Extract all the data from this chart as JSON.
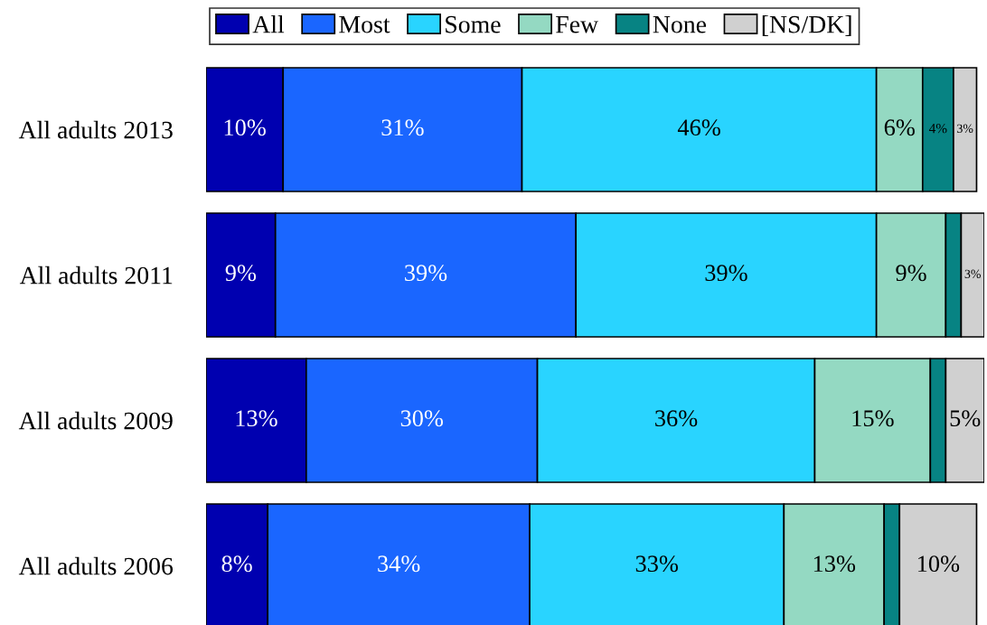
{
  "chart_data": {
    "type": "bar",
    "orientation": "horizontal",
    "stacked": true,
    "legend": "top",
    "categories": [
      "All adults 2013",
      "All adults 2011",
      "All adults 2009",
      "All adults 2006"
    ],
    "series": [
      {
        "name": "All",
        "color": "#0000b0",
        "values": [
          10,
          9,
          13,
          8
        ],
        "value_labels": [
          "10%",
          "9%",
          "13%",
          "8%"
        ]
      },
      {
        "name": "Most",
        "color": "#1a66ff",
        "values": [
          31,
          39,
          30,
          34
        ],
        "value_labels": [
          "31%",
          "39%",
          "30%",
          "34%"
        ]
      },
      {
        "name": "Some",
        "color": "#29d4ff",
        "values": [
          46,
          39,
          36,
          33
        ],
        "value_labels": [
          "46%",
          "39%",
          "36%",
          "33%"
        ]
      },
      {
        "name": "Few",
        "color": "#94d9c2",
        "values": [
          6,
          9,
          15,
          13
        ],
        "value_labels": [
          "6%",
          "9%",
          "15%",
          "13%"
        ]
      },
      {
        "name": "None",
        "color": "#078383",
        "values": [
          4,
          2,
          2,
          2
        ],
        "value_labels": [
          "4%",
          null,
          null,
          null
        ]
      },
      {
        "name": "[NS/DK]",
        "color": "#d0d0d0",
        "values": [
          3,
          3,
          5,
          10
        ],
        "value_labels": [
          "3%",
          "3%",
          "5%",
          "10%"
        ]
      }
    ]
  }
}
